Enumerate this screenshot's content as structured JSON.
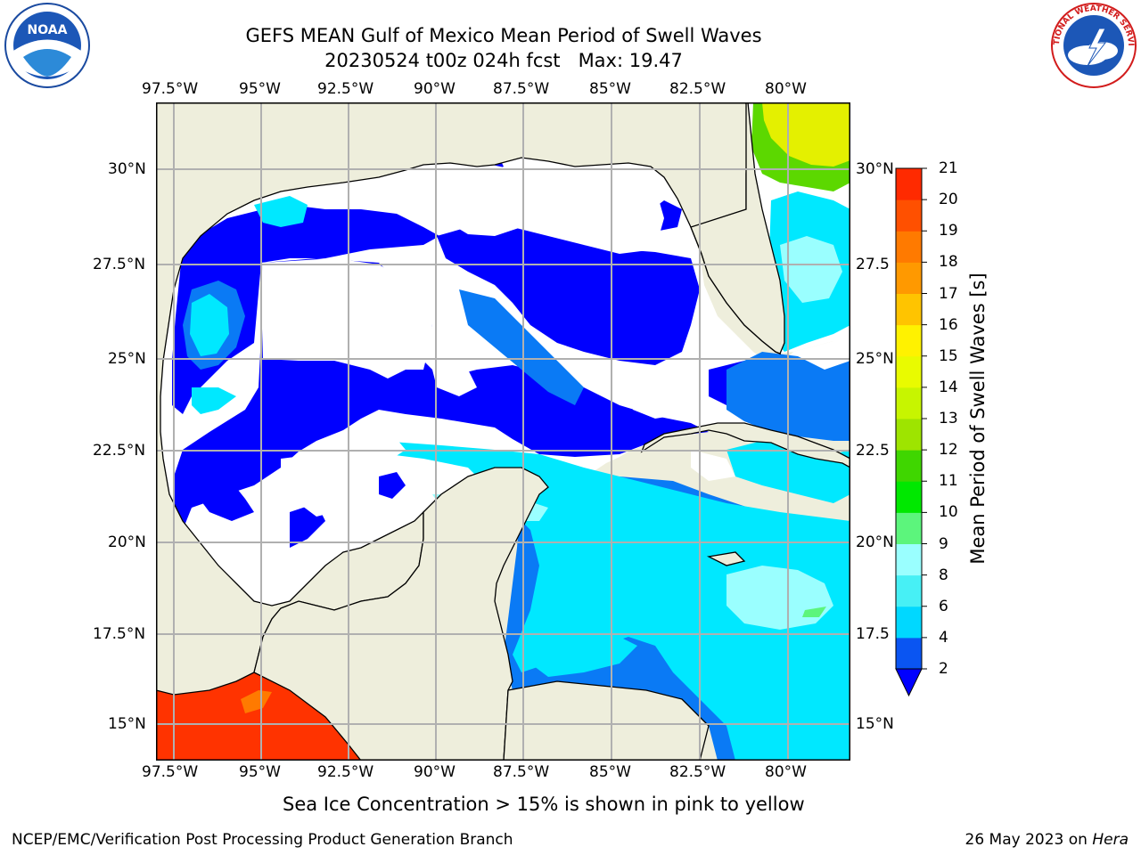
{
  "title_line1": "GEFS MEAN Gulf of Mexico Mean Period of Swell Waves",
  "title_line2": "20230524 t00z 024h fcst   Max: 19.47",
  "lon_ticks": [
    "97.5°W",
    "95°W",
    "92.5°W",
    "90°W",
    "87.5°W",
    "85°W",
    "82.5°W",
    "80°W"
  ],
  "lat_ticks": [
    "30°N",
    "27.5°N",
    "25°N",
    "22.5°N",
    "20°N",
    "17.5°N",
    "15°N"
  ],
  "lat_ticks_right": [
    "30°N",
    "27.5",
    "25°N",
    "22.5",
    "20°N",
    "17.5",
    "15°N"
  ],
  "colorbar": {
    "label": "Mean Period of Swell Waves [s]",
    "ticks": [
      "2",
      "4",
      "6",
      "8",
      "9",
      "10",
      "11",
      "12",
      "13",
      "14",
      "15",
      "16",
      "17",
      "18",
      "19",
      "20",
      "21"
    ],
    "colors": [
      "#0a55f2",
      "#00d8ff",
      "#47f0f5",
      "#9affff",
      "#5cf57c",
      "#00e800",
      "#3fd600",
      "#9ee400",
      "#c7f500",
      "#e9fb00",
      "#fff200",
      "#ffc400",
      "#ff9900",
      "#ff7a00",
      "#ff5000",
      "#ff2a00",
      "#ff0a00"
    ],
    "under_color": "#0000ff"
  },
  "notice": "Sea Ice Concentration > 15% is shown in pink to yellow",
  "footer_left": "NCEP/EMC/Verification Post Processing Product Generation Branch",
  "footer_date": "26 May 2023 on ",
  "footer_host": "Hera",
  "logo_left_text": "NOAA",
  "logo_right_text": "NATIONAL WEATHER SERVICE",
  "colors": {
    "land": "#eeeedc",
    "ocean_no_data": "#ffffff",
    "swell_2_4": "#0000ff",
    "swell_4_6": "#0a7af5",
    "swell_6_8": "#00e8ff",
    "swell_8_9": "#9affff",
    "ice_red": "#ff3300",
    "grid": "#b0b0b0"
  }
}
